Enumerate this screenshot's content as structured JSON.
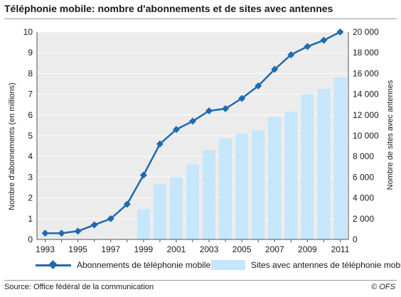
{
  "header": {
    "title": "Téléphonie mobile: nombre d'abonnements et de sites avec antennes"
  },
  "footer": {
    "source": "Source: Office fédéral de la communication",
    "credit": "© OFS"
  },
  "legend": {
    "line_label": "Abonnements de téléphonie mobile",
    "bar_label": "Sites avec antennes de téléphonie mobile"
  },
  "colors": {
    "line": "#1f6bb0",
    "bar": "#c5e6fb",
    "plot_background": "#ececec",
    "grid": "#ffffff"
  },
  "chart_data": {
    "type": "bar+line",
    "title": "Téléphonie mobile: nombre d'abonnements et de sites avec antennes",
    "ylabel_left": "Nombre d'abonnements (en millions)",
    "ylabel_right": "Nombre de sites avec antennes",
    "ylim_left": [
      0,
      10
    ],
    "ylim_right": [
      0,
      20000
    ],
    "yticks_left": [
      "0",
      "1",
      "2",
      "3",
      "4",
      "5",
      "6",
      "7",
      "8",
      "9",
      "10"
    ],
    "yticks_right": [
      "0",
      "2 000",
      "4 000",
      "6 000",
      "8 000",
      "10 000",
      "12 000",
      "14 000",
      "16 000",
      "18 000",
      "20 000"
    ],
    "x": [
      1993,
      1994,
      1995,
      1996,
      1997,
      1998,
      1999,
      2000,
      2001,
      2002,
      2003,
      2004,
      2005,
      2006,
      2007,
      2008,
      2009,
      2010,
      2011
    ],
    "xtick_labels": [
      "1993",
      "1995",
      "1997",
      "1999",
      "2001",
      "2003",
      "2005",
      "2007",
      "2009",
      "2011"
    ],
    "grid": true,
    "legend_position": "bottom",
    "series": [
      {
        "name": "Abonnements de téléphonie mobile",
        "kind": "line",
        "axis": "left",
        "values": [
          0.3,
          0.3,
          0.4,
          0.7,
          1.0,
          1.7,
          3.1,
          4.6,
          5.3,
          5.7,
          6.2,
          6.3,
          6.8,
          7.4,
          8.2,
          8.9,
          9.3,
          9.6,
          10.0
        ]
      },
      {
        "name": "Sites avec antennes de téléphonie mobile",
        "kind": "bar",
        "axis": "right",
        "values": [
          null,
          null,
          null,
          null,
          null,
          null,
          2900,
          5300,
          6000,
          7200,
          8600,
          9700,
          10200,
          10500,
          11800,
          12300,
          14000,
          14500,
          15600
        ]
      }
    ]
  }
}
